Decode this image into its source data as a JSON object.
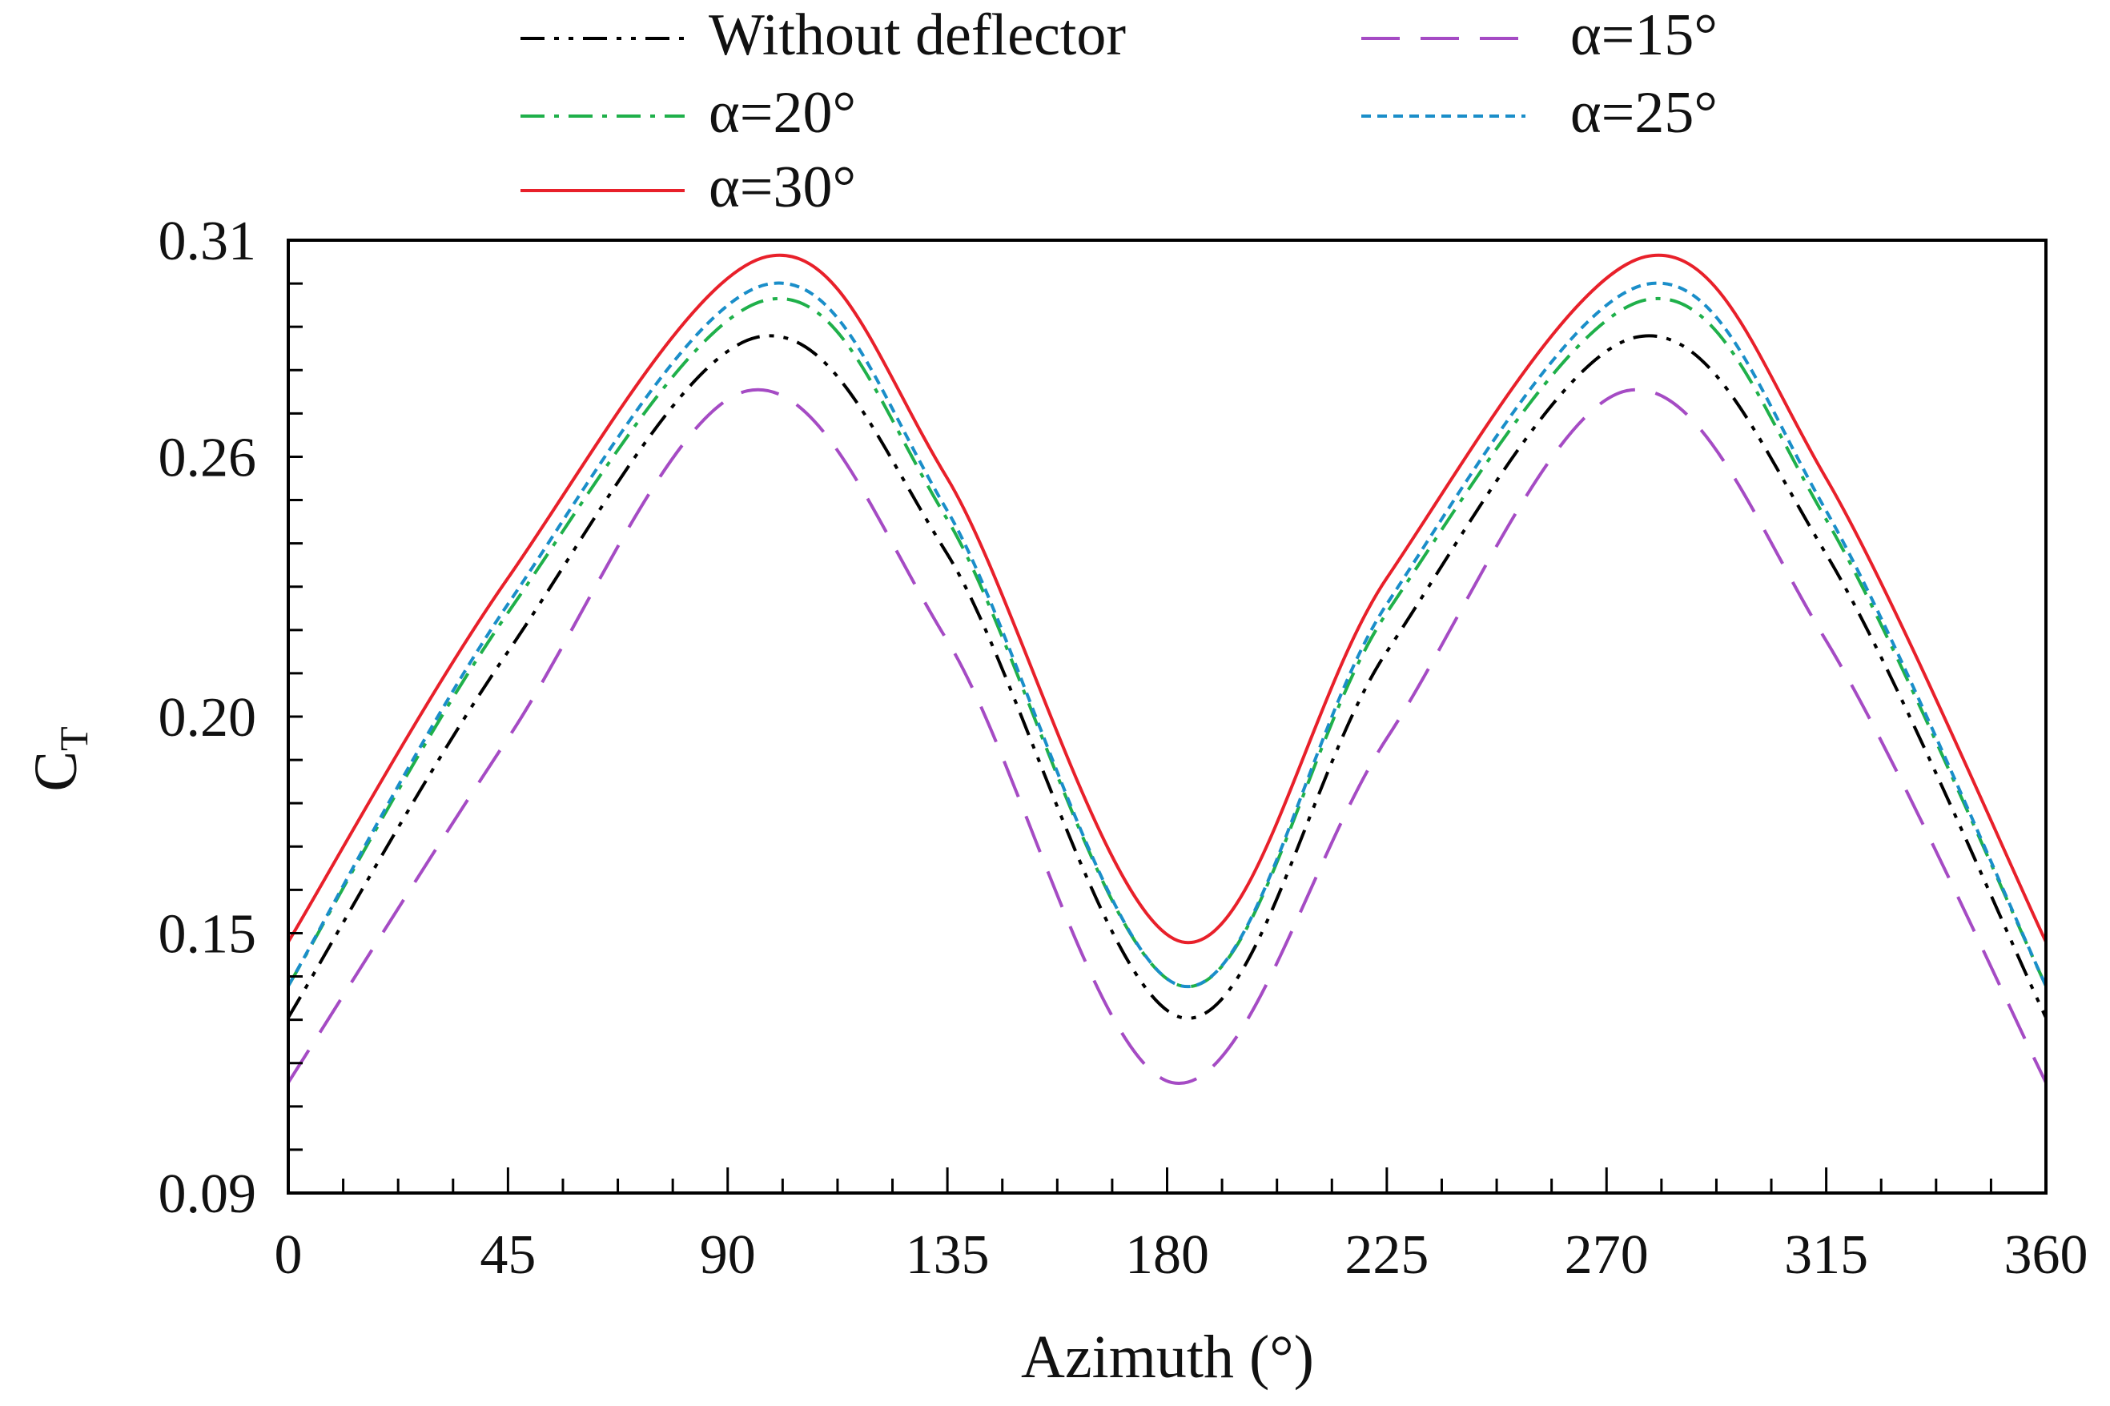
{
  "chart_data": {
    "type": "line",
    "title": "",
    "xlabel": "Azimuth (°)",
    "ylabel_main": "C",
    "ylabel_sub": "T",
    "xlim": [
      0,
      360
    ],
    "ylim": [
      0.09,
      0.31
    ],
    "xticks": [
      0,
      45,
      90,
      135,
      180,
      225,
      270,
      315,
      360
    ],
    "xtick_labels": [
      "0",
      "45",
      "90",
      "135",
      "180",
      "225",
      "270",
      "315",
      "360"
    ],
    "yticks": [
      0.09,
      0.15,
      0.2,
      0.26,
      0.31
    ],
    "ytick_labels": [
      "0.09",
      "0.15",
      "0.20",
      "0.26",
      "0.31"
    ],
    "grid": false,
    "legend_position": "top",
    "series": [
      {
        "name": "Without deflector",
        "color": "#000000",
        "dash": "dashdotdot",
        "x": [
          0,
          45,
          96,
          135,
          183,
          225,
          276,
          315,
          360
        ],
        "values": [
          0.1305,
          0.215,
          0.2876,
          0.2375,
          0.1305,
          0.215,
          0.2876,
          0.2375,
          0.1305
        ]
      },
      {
        "name": "α=15°",
        "color": "#a54bc4",
        "dash": "longdash",
        "x": [
          0,
          45,
          94,
          135,
          181,
          225,
          274,
          315,
          360
        ],
        "values": [
          0.1155,
          0.195,
          0.2752,
          0.2175,
          0.1155,
          0.195,
          0.2752,
          0.2175,
          0.1155
        ]
      },
      {
        "name": "α=20°",
        "color": "#1fb04a",
        "dash": "dashdot",
        "x": [
          0,
          45,
          98,
          135,
          183,
          225,
          278,
          315,
          360
        ],
        "values": [
          0.1378,
          0.224,
          0.2962,
          0.2455,
          0.1378,
          0.224,
          0.2962,
          0.2455,
          0.1378
        ]
      },
      {
        "name": "α=25°",
        "color": "#1a8ec9",
        "dash": "shortdash",
        "x": [
          0,
          45,
          98,
          135,
          183,
          225,
          278,
          315,
          360
        ],
        "values": [
          0.1378,
          0.226,
          0.2998,
          0.2475,
          0.1378,
          0.226,
          0.2998,
          0.2475,
          0.1378
        ]
      },
      {
        "name": "α=30°",
        "color": "#e8202a",
        "dash": "solid",
        "x": [
          0,
          45,
          98,
          135,
          183,
          225,
          278,
          315,
          360
        ],
        "values": [
          0.148,
          0.232,
          0.3062,
          0.255,
          0.148,
          0.232,
          0.3062,
          0.255,
          0.148
        ]
      }
    ]
  }
}
